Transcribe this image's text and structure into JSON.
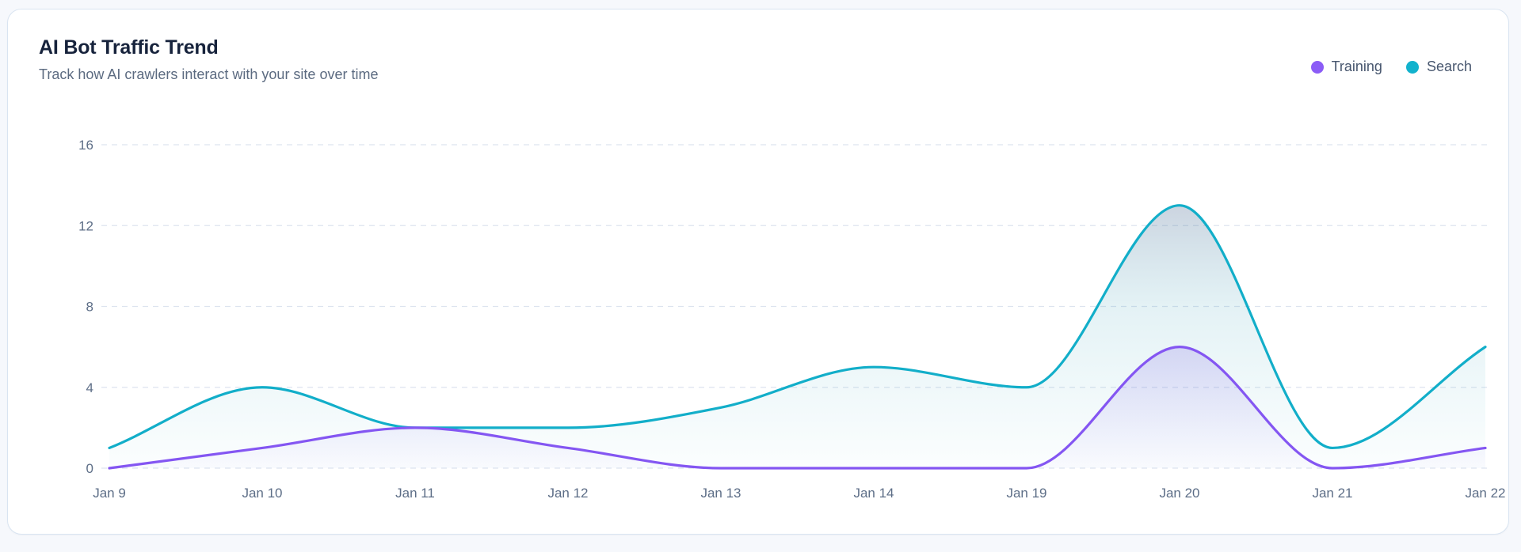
{
  "card": {
    "title": "AI Bot Traffic Trend",
    "subtitle": "Track how AI crawlers interact with your site over time"
  },
  "legend": {
    "items": [
      {
        "label": "Training",
        "color": "#8b5cf6"
      },
      {
        "label": "Search",
        "color": "#12b2cd"
      }
    ]
  },
  "chart_data": {
    "type": "area",
    "title": "AI Bot Traffic Trend",
    "categories": [
      "Jan 9",
      "Jan 10",
      "Jan 11",
      "Jan 12",
      "Jan 13",
      "Jan 14",
      "Jan 19",
      "Jan 20",
      "Jan 21",
      "Jan 22"
    ],
    "series": [
      {
        "name": "Training",
        "color": "#8456f2",
        "fill_top": "rgba(106,70,222,0.18)",
        "fill_bottom": "rgba(124,92,240,0.02)",
        "values": [
          0,
          1,
          2,
          1,
          0,
          0,
          0,
          6,
          0,
          1
        ]
      },
      {
        "name": "Search",
        "color": "#12aec9",
        "fill_top": "rgba(70,100,143,0.28)",
        "fill_mid": "rgba(62,160,184,0.14)",
        "fill_bottom": "rgba(64,181,200,0.02)",
        "values": [
          1,
          4,
          2,
          2,
          3,
          5,
          4,
          13,
          1,
          6
        ]
      }
    ],
    "xlabel": "",
    "ylabel": "",
    "yticks": [
      0,
      4,
      8,
      12,
      16
    ],
    "ylim": [
      0,
      16
    ],
    "grid": "horizontal-dashed",
    "gridline_color": "#dde4ef",
    "tick_label_color": "#5d6e87",
    "legend_position": "top-right"
  }
}
